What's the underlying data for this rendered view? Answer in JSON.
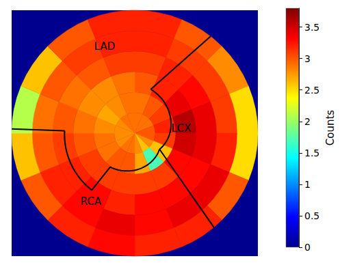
{
  "chart_data": {
    "type": "polar_heatmap",
    "annotations": [
      "LAD",
      "LCX",
      "RCA"
    ],
    "cells": [
      [
        2.9,
        2.9,
        2.9,
        3.0,
        3.0,
        2.8,
        2.6,
        2.8,
        2.9,
        2.9,
        2.8,
        2.8,
        2.8,
        2.8,
        2.9,
        2.9
      ],
      [
        2.9,
        3.0,
        3.1,
        3.2,
        3.1,
        2.6,
        1.7,
        2.7,
        3.0,
        3.0,
        2.9,
        2.9,
        2.8,
        2.7,
        2.8,
        2.9
      ],
      [
        3.0,
        3.2,
        3.4,
        3.6,
        3.5,
        3.3,
        3.1,
        3.1,
        3.1,
        3.1,
        3.1,
        3.0,
        2.9,
        2.8,
        2.8,
        2.9
      ],
      [
        3.1,
        3.2,
        3.3,
        3.4,
        3.4,
        3.3,
        3.3,
        3.3,
        3.2,
        3.3,
        3.2,
        3.1,
        3.0,
        2.9,
        3.0,
        3.1
      ],
      [
        3.2,
        3.1,
        3.1,
        3.1,
        3.2,
        3.4,
        3.4,
        3.3,
        3.4,
        3.3,
        3.2,
        3.0,
        2.9,
        3.0,
        3.1,
        3.2
      ],
      [
        3.2,
        3.0,
        2.8,
        2.5,
        2.5,
        3.0,
        3.2,
        3.2,
        3.3,
        3.2,
        3.0,
        2.6,
        2.1,
        2.6,
        3.0,
        3.2
      ]
    ],
    "colorbar": {
      "label": "Counts",
      "range": [
        0,
        3.8
      ],
      "ticks": [
        0,
        0.5,
        1,
        1.5,
        2,
        2.5,
        3,
        3.5
      ]
    }
  }
}
